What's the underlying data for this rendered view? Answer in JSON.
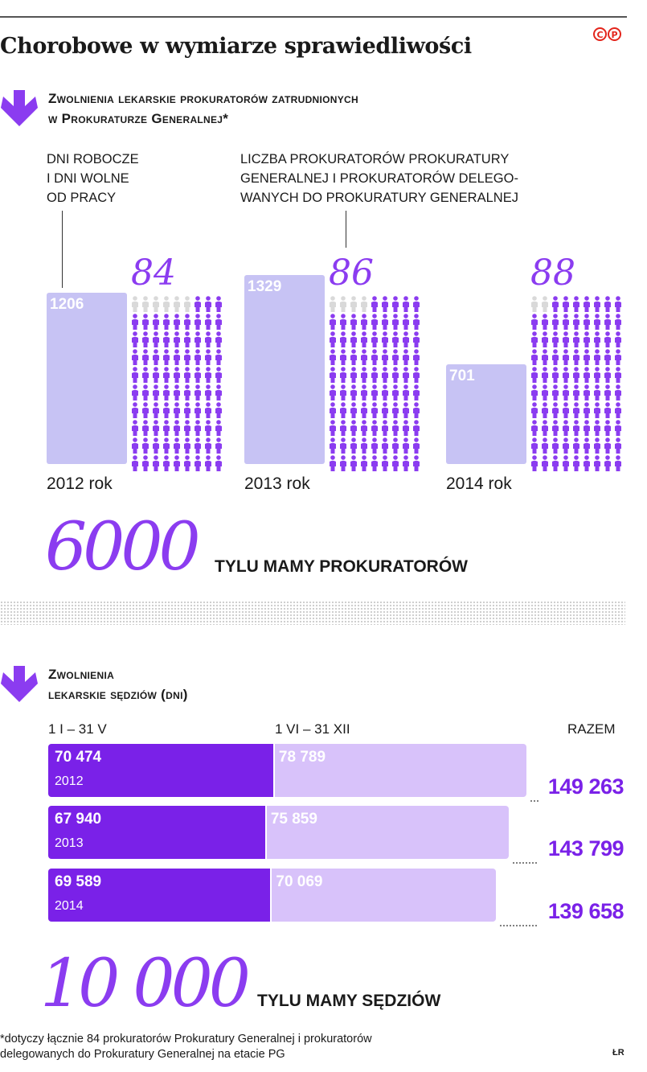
{
  "title": "Chorobowe w wymiarze sprawiedliwości",
  "logo": {
    "c": "C",
    "p": "P"
  },
  "colors": {
    "accent": "#8b3cf0",
    "accent_dark": "#7a21e8",
    "bar_light": "#c7c3f4",
    "bar_light2": "#d8c2fa",
    "people_inactive": "#d9d9d9",
    "logo": "#e3251c"
  },
  "section1": {
    "heading_line1": "Zwolnienia lekarskie prokuratorów zatrudnionych",
    "heading_line2": "w Prokuraturze Generalnej*",
    "annotation_days": [
      "DNI ROBOCZE",
      "I DNI WOLNE",
      "OD PRACY"
    ],
    "annotation_people": [
      "LICZBA PROKURATORÓW PROKURATURY",
      "GENERALNEJ I PROKURATORÓW DELEGO-",
      "WANYCH DO PROKURATURY GENERALNEJ"
    ],
    "big_number": "6000",
    "big_caption": "TYLU MAMY PROKURATORÓW"
  },
  "section2": {
    "heading_line1": "Zwolnienia",
    "heading_line2": "lekarskie sędziów (dni)",
    "col1_label": "1 I – 31 V",
    "col2_label": "1 VI – 31 XII",
    "col3_label": "RAZEM",
    "big_number": "10 000",
    "big_caption": "TYLU MAMY SĘDZIÓW"
  },
  "footnote": [
    "*dotyczy łącznie 84 prokuratorów Prokuratury Generalnej i prokuratorów",
    "delegowanych do Prokuratury Generalnej na etacie PG"
  ],
  "credit": "ŁR",
  "chart_data": [
    {
      "type": "bar",
      "categories": [
        "2012 rok",
        "2013 rok",
        "2014 rok"
      ],
      "series": [
        {
          "name": "DNI ROBOCZE I DNI WOLNE OD PRACY",
          "values": [
            1206,
            1329,
            701
          ],
          "labels": [
            "1206",
            "1329",
            "701"
          ]
        },
        {
          "name": "LICZBA PROKURATORÓW PROKURATURY GENERALNEJ I PROKURATORÓW DELEGOWANYCH DO PROKURATURY GENERALNEJ",
          "values": [
            84,
            86,
            88
          ],
          "labels": [
            "84",
            "86",
            "88"
          ]
        }
      ],
      "people_grid": {
        "rows": 10,
        "cols": 9,
        "filled": [
          84,
          86,
          88
        ]
      },
      "ylim": [
        0,
        1450
      ]
    },
    {
      "type": "bar",
      "stacked": true,
      "orientation": "horizontal",
      "categories": [
        "2012",
        "2013",
        "2014"
      ],
      "series": [
        {
          "name": "1 I – 31 V",
          "values": [
            70474,
            67940,
            69589
          ],
          "labels": [
            "70 474",
            "67 940",
            "69 589"
          ]
        },
        {
          "name": "1 VI – 31 XII",
          "values": [
            78789,
            75859,
            70069
          ],
          "labels": [
            "78 789",
            "75 859",
            "70 069"
          ]
        }
      ],
      "totals": [
        149263,
        143799,
        139658
      ],
      "total_labels": [
        "149 263",
        "143 799",
        "139 658"
      ],
      "xlim": [
        0,
        160000
      ]
    }
  ]
}
